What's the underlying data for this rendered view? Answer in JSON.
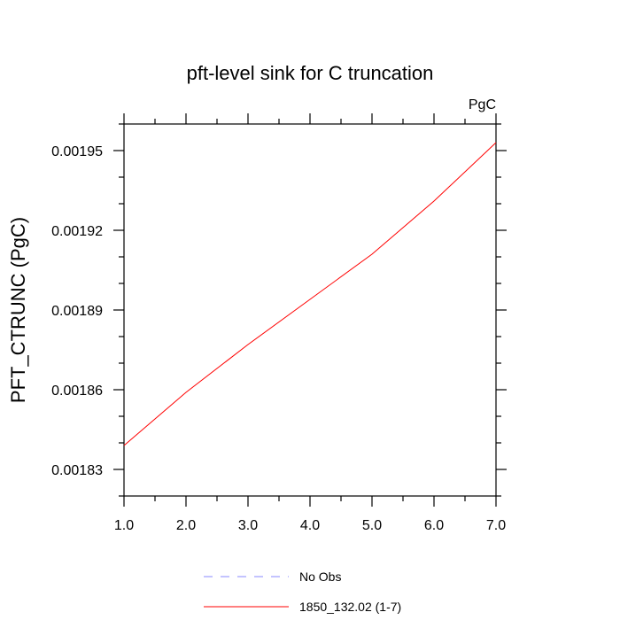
{
  "chart_data": {
    "type": "line",
    "title": "pft-level sink for C truncation",
    "units_label": "PgC",
    "ylabel": "PFT_CTRUNC  (PgC)",
    "xlabel": "",
    "xlim": [
      1.0,
      7.0
    ],
    "ylim": [
      0.00182,
      0.00196
    ],
    "x_ticks": [
      1,
      2,
      3,
      4,
      5,
      6,
      7
    ],
    "x_tick_labels": [
      "1.0",
      "2.0",
      "3.0",
      "4.0",
      "5.0",
      "6.0",
      "7.0"
    ],
    "y_ticks": [
      0.00183,
      0.00186,
      0.00189,
      0.00192,
      0.00195
    ],
    "y_tick_labels": [
      "0.00183",
      "0.00186",
      "0.00189",
      "0.00192",
      "0.00195"
    ],
    "grid": false,
    "legend_position": "bottom",
    "series": [
      {
        "name": "1850_132.02 (1-7)",
        "color": "#ff0000",
        "dash": "solid",
        "x": [
          1,
          2,
          3,
          4,
          5,
          6,
          7
        ],
        "values": [
          0.001839,
          0.001859,
          0.001877,
          0.001894,
          0.001911,
          0.001931,
          0.001953
        ]
      }
    ],
    "legend": [
      {
        "label": "No Obs",
        "color": "#8888ff",
        "dash": "dashed"
      },
      {
        "label": "1850_132.02 (1-7)",
        "color": "#ff0000",
        "dash": "solid"
      }
    ]
  }
}
